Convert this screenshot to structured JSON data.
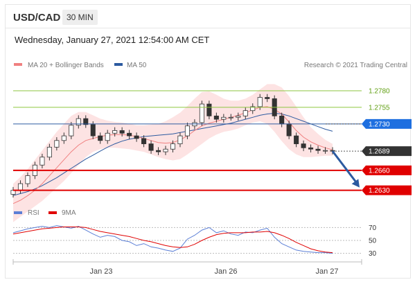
{
  "header": {
    "symbol": "USD/CAD",
    "timeframe": "30 MIN"
  },
  "datetime": "Wednesday, January 27, 2021 12:54:00 AM CET",
  "legend": {
    "ma20_label": "MA 20 + Bollinger Bands",
    "ma50_label": "MA 50",
    "credit": "Research © 2021 Trading Central",
    "rsi_label": "RSI",
    "rsi9_label": "9MA"
  },
  "colors": {
    "ma20": "#f08080",
    "ma50": "#2c5aa0",
    "bollinger_fill": "#fde3e3",
    "resistance": "#8dc63f",
    "pivot": "#2c5aa0",
    "support": "#e00000",
    "current": "#333333",
    "arrow": "#2c5aa0",
    "rsi": "#5b7fd6",
    "rsi9": "#e00000"
  },
  "chart_data": [
    {
      "type": "line",
      "title": "",
      "x_ticks": [
        "Jan 23",
        "Jan 26",
        "Jan 27"
      ],
      "levels": [
        {
          "name": "resistance-2",
          "value": "1.2780",
          "kind": "resistance"
        },
        {
          "name": "resistance-1",
          "value": "1.2755",
          "kind": "resistance"
        },
        {
          "name": "pivot",
          "value": "1.2730",
          "kind": "pivot"
        },
        {
          "name": "current",
          "value": "1.2689",
          "kind": "current"
        },
        {
          "name": "support-1",
          "value": "1.2660",
          "kind": "support"
        },
        {
          "name": "support-2",
          "value": "1.2630",
          "kind": "support"
        }
      ],
      "ylim": [
        1.2615,
        1.2805
      ],
      "price_close": [
        1.263,
        1.264,
        1.2652,
        1.2668,
        1.268,
        1.2695,
        1.2705,
        1.2712,
        1.2728,
        1.2738,
        1.2729,
        1.2712,
        1.2705,
        1.2716,
        1.272,
        1.2716,
        1.2712,
        1.2708,
        1.27,
        1.269,
        1.2688,
        1.2692,
        1.27,
        1.2712,
        1.2727,
        1.2732,
        1.276,
        1.2742,
        1.2737,
        1.274,
        1.274,
        1.2742,
        1.275,
        1.2756,
        1.277,
        1.2768,
        1.2742,
        1.273,
        1.2712,
        1.27,
        1.2694,
        1.2692,
        1.269,
        1.269,
        1.2689
      ],
      "ma20": [
        1.261,
        1.2615,
        1.2622,
        1.263,
        1.264,
        1.2652,
        1.2664,
        1.2676,
        1.2688,
        1.2698,
        1.2705,
        1.2708,
        1.2711,
        1.2713,
        1.2714,
        1.2714,
        1.2713,
        1.2711,
        1.2708,
        1.2705,
        1.2702,
        1.2701,
        1.2702,
        1.2706,
        1.2712,
        1.272,
        1.2727,
        1.2731,
        1.2734,
        1.2737,
        1.274,
        1.2743,
        1.2747,
        1.2751,
        1.2755,
        1.2756,
        1.2752,
        1.2745,
        1.2733,
        1.272,
        1.271,
        1.2703,
        1.2698,
        1.2694,
        1.2691
      ],
      "ma50": [
        1.2622,
        1.2625,
        1.2628,
        1.2632,
        1.2637,
        1.2643,
        1.2649,
        1.2656,
        1.2663,
        1.267,
        1.2677,
        1.2683,
        1.2689,
        1.2695,
        1.27,
        1.2704,
        1.2707,
        1.2709,
        1.2711,
        1.2712,
        1.2713,
        1.2714,
        1.2715,
        1.2717,
        1.2719,
        1.2721,
        1.2723,
        1.2725,
        1.2727,
        1.2729,
        1.2731,
        1.2734,
        1.2737,
        1.274,
        1.2743,
        1.2745,
        1.2746,
        1.2745,
        1.2742,
        1.2738,
        1.2734,
        1.273,
        1.2726,
        1.2722,
        1.2719
      ],
      "bb_upper": [
        1.264,
        1.265,
        1.2662,
        1.2676,
        1.269,
        1.2704,
        1.2718,
        1.273,
        1.2742,
        1.2748,
        1.2748,
        1.2743,
        1.2738,
        1.2735,
        1.2733,
        1.2732,
        1.273,
        1.2728,
        1.2728,
        1.2729,
        1.273,
        1.2734,
        1.274,
        1.2747,
        1.2757,
        1.2768,
        1.2778,
        1.2779,
        1.2774,
        1.2768,
        1.2765,
        1.2765,
        1.2768,
        1.2774,
        1.2782,
        1.279,
        1.279,
        1.2785,
        1.2772,
        1.2756,
        1.274,
        1.2725,
        1.2715,
        1.2706,
        1.27
      ],
      "bb_lower": [
        1.2582,
        1.259,
        1.2598,
        1.2606,
        1.2614,
        1.2624,
        1.2634,
        1.2644,
        1.2656,
        1.2668,
        1.268,
        1.2688,
        1.2692,
        1.2694,
        1.2694,
        1.2693,
        1.2692,
        1.269,
        1.2688,
        1.2684,
        1.268,
        1.2677,
        1.2675,
        1.2677,
        1.2684,
        1.2692,
        1.27,
        1.2708,
        1.2714,
        1.2718,
        1.272,
        1.2723,
        1.2728,
        1.2732,
        1.2734,
        1.273,
        1.2718,
        1.2704,
        1.2692,
        1.2684,
        1.268,
        1.268,
        1.2681,
        1.2682,
        1.2682
      ],
      "forecast_target": "1.2630"
    },
    {
      "type": "line",
      "title": "",
      "y_ticks": [
        "70",
        "50",
        "30"
      ],
      "ylim": [
        22,
        78
      ],
      "rsi": [
        62,
        65,
        68,
        70,
        72,
        70,
        73,
        71,
        69,
        72,
        66,
        60,
        55,
        58,
        56,
        50,
        48,
        42,
        45,
        40,
        38,
        35,
        33,
        38,
        52,
        58,
        66,
        70,
        62,
        65,
        60,
        58,
        63,
        62,
        66,
        69,
        55,
        45,
        40,
        35,
        33,
        32,
        31,
        31,
        30
      ],
      "rsi9": [
        60,
        62,
        64,
        66,
        68,
        69,
        70,
        71,
        71,
        71,
        70,
        67,
        64,
        62,
        60,
        58,
        56,
        53,
        50,
        48,
        45,
        42,
        40,
        39,
        40,
        44,
        50,
        55,
        59,
        61,
        62,
        62,
        62,
        63,
        63,
        64,
        62,
        58,
        53,
        47,
        42,
        37,
        34,
        32,
        31
      ]
    }
  ]
}
